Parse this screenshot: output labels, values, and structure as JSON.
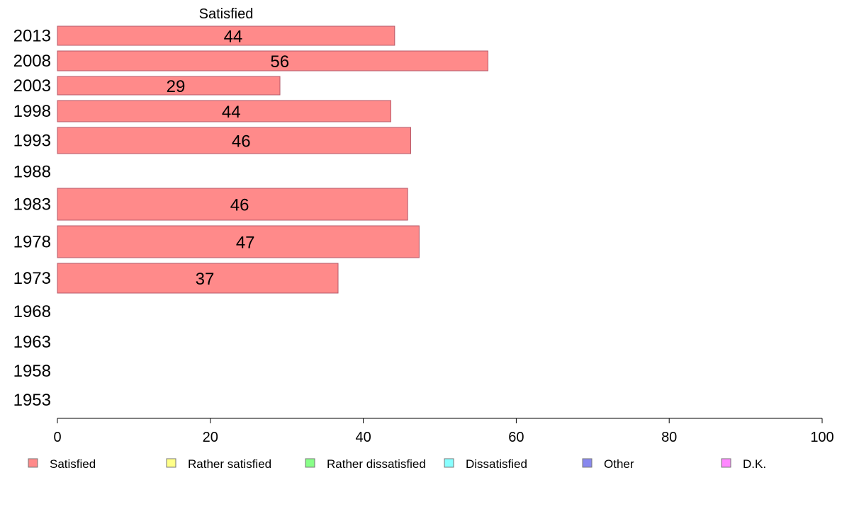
{
  "chart_data": {
    "type": "bar",
    "orientation": "horizontal",
    "categories": [
      "2013",
      "2008",
      "2003",
      "1998",
      "1993",
      "1988",
      "1983",
      "1978",
      "1973",
      "1968",
      "1963",
      "1958",
      "1953"
    ],
    "series": [
      {
        "name": "Satisfied",
        "color": "#ff8a8a",
        "values": [
          44.1,
          56.3,
          29.1,
          43.6,
          46.2,
          null,
          45.8,
          47.3,
          36.7,
          null,
          null,
          null,
          null
        ],
        "labels": [
          "44",
          "56",
          "29",
          "44",
          "46",
          "",
          "46",
          "47",
          "37",
          "",
          "",
          "",
          ""
        ]
      }
    ],
    "column_header": "Satisfied",
    "xlim": [
      0,
      100
    ],
    "xticks": [
      0,
      20,
      40,
      60,
      80,
      100
    ],
    "grid": false,
    "legend": {
      "placement": "bottom",
      "items": [
        {
          "label": "Satisfied",
          "color": "#ff8a8a"
        },
        {
          "label": "Rather satisfied",
          "color": "#ffff88"
        },
        {
          "label": "Rather dissatisfied",
          "color": "#88ff88"
        },
        {
          "label": "Dissatisfied",
          "color": "#88ffff"
        },
        {
          "label": "Other",
          "color": "#8888ee"
        },
        {
          "label": "D.K.",
          "color": "#ff88ff"
        }
      ]
    }
  }
}
